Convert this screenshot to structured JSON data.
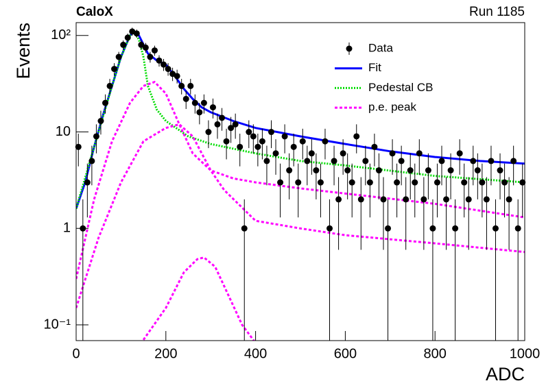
{
  "chart_data": {
    "type": "scatter",
    "title": "CaloX",
    "subtitle": "Run 1185",
    "x_label": "ADC",
    "y_label": "Events",
    "log_y": true,
    "xlim": [
      0,
      1000
    ],
    "ylim": [
      0.0687,
      136
    ],
    "xticks": [
      0,
      200,
      400,
      600,
      800,
      1000
    ],
    "yticks": [
      {
        "value": 0.1,
        "label": "10⁻¹"
      },
      1,
      10,
      {
        "value": 100,
        "label": "10²"
      }
    ],
    "legend": "top-right",
    "data_points": {
      "name": "Data",
      "color": "#000000",
      "x": [
        5,
        15,
        25,
        35,
        45,
        55,
        65,
        75,
        85,
        95,
        105,
        115,
        125,
        135,
        145,
        155,
        165,
        175,
        185,
        195,
        205,
        215,
        225,
        235,
        245,
        255,
        265,
        275,
        285,
        295,
        305,
        315,
        325,
        335,
        345,
        355,
        365,
        375,
        385,
        395,
        405,
        415,
        425,
        435,
        445,
        455,
        465,
        475,
        485,
        495,
        505,
        515,
        525,
        535,
        545,
        555,
        565,
        575,
        585,
        595,
        605,
        615,
        625,
        635,
        645,
        655,
        665,
        675,
        685,
        695,
        705,
        715,
        725,
        735,
        745,
        755,
        765,
        775,
        785,
        795,
        805,
        815,
        825,
        835,
        845,
        855,
        865,
        875,
        885,
        895,
        905,
        915,
        925,
        935,
        945,
        955,
        965,
        975,
        985,
        995
      ],
      "values": [
        7,
        1,
        3,
        5,
        9,
        13,
        20,
        30,
        45,
        60,
        80,
        95,
        110,
        105,
        80,
        75,
        60,
        70,
        55,
        50,
        45,
        40,
        38,
        30,
        22,
        30,
        20,
        16,
        20,
        10,
        18,
        12,
        14,
        8,
        11,
        12,
        7,
        1,
        10,
        9,
        7,
        8,
        5,
        10,
        6,
        3,
        9,
        4,
        7,
        3,
        8,
        5,
        6,
        4,
        3,
        8,
        1,
        5,
        2,
        6,
        4,
        3,
        9,
        2,
        5,
        3,
        7,
        4,
        2,
        1,
        6,
        3,
        5,
        2,
        4,
        3,
        6,
        2,
        4,
        1,
        3,
        5,
        2,
        4,
        1,
        6,
        3,
        2,
        5,
        4,
        3,
        2,
        5,
        1,
        4,
        3,
        2,
        5,
        1,
        3
      ],
      "errors": [
        2.6,
        1,
        1.7,
        2.2,
        3,
        3.6,
        4.5,
        5.5,
        6.7,
        7.7,
        8.9,
        9.7,
        10.5,
        10.2,
        8.9,
        8.7,
        7.7,
        8.4,
        7.4,
        7.1,
        6.7,
        6.3,
        6.2,
        5.5,
        4.7,
        5.5,
        4.5,
        4,
        4.5,
        3.2,
        4.2,
        3.5,
        3.7,
        2.8,
        3.3,
        3.5,
        2.6,
        1,
        3.2,
        3,
        2.6,
        2.8,
        2.2,
        3.2,
        2.4,
        1.7,
        3,
        2,
        2.6,
        1.7,
        2.8,
        2.2,
        2.4,
        2,
        1.7,
        2.8,
        1,
        2.2,
        1.4,
        2.4,
        2,
        1.7,
        3,
        1.4,
        2.2,
        1.7,
        2.6,
        2,
        1.4,
        1,
        2.4,
        1.7,
        2.2,
        1.4,
        2,
        1.7,
        2.4,
        1.4,
        2,
        1,
        1.7,
        2.2,
        1.4,
        2,
        1,
        2.4,
        1.7,
        1.4,
        2.2,
        2,
        1.7,
        1.4,
        2.2,
        1,
        2,
        1.7,
        1.4,
        2.2,
        1,
        1.7
      ]
    },
    "curves": [
      {
        "name": "Fit",
        "color": "#0000ff",
        "style": "solid",
        "x": [
          0,
          20,
          40,
          60,
          80,
          100,
          120,
          130,
          140,
          160,
          180,
          200,
          220,
          240,
          260,
          280,
          300,
          350,
          400,
          500,
          600,
          700,
          800,
          900,
          1000
        ],
        "values": [
          1.6,
          3,
          7,
          15,
          30,
          60,
          100,
          110,
          100,
          65,
          55,
          50,
          38,
          28,
          22,
          18,
          16,
          13,
          11,
          9,
          7.5,
          6.3,
          5.5,
          5,
          4.7
        ]
      },
      {
        "name": "Pedestal CB",
        "color": "#00dd00",
        "style": "dotted",
        "x": [
          0,
          40,
          80,
          100,
          120,
          130,
          140,
          150,
          160,
          180,
          200,
          250,
          300,
          400,
          500,
          600,
          800,
          1000
        ],
        "values": [
          1.6,
          7,
          30,
          60,
          100,
          110,
          90,
          60,
          30,
          17,
          13,
          9,
          7.5,
          6,
          5,
          4.5,
          3.5,
          3
        ]
      },
      {
        "name": "p.e. peak",
        "color": "#ff00ff",
        "style": "dashed",
        "x": [
          0,
          40,
          80,
          120,
          150,
          175,
          200,
          230,
          260,
          300,
          350,
          400,
          500,
          600,
          800,
          1000
        ],
        "values": [
          0.3,
          2,
          8,
          20,
          30,
          33,
          25,
          12,
          6,
          4,
          3.3,
          3,
          2.6,
          2.3,
          1.8,
          1.3
        ]
      },
      {
        "color": "#ff00ff",
        "style": "dashed",
        "x": [
          0,
          50,
          100,
          150,
          200,
          230,
          260,
          300,
          330,
          400,
          500,
          600,
          800,
          1000
        ],
        "values": [
          0.15,
          0.8,
          3,
          8,
          11,
          12,
          9,
          4,
          2.5,
          1.2,
          1,
          0.85,
          0.7,
          0.57
        ]
      },
      {
        "color": "#ff00ff",
        "style": "dashed",
        "x": [
          150,
          200,
          240,
          270,
          285,
          310,
          340,
          370,
          400
        ],
        "values": [
          0.07,
          0.15,
          0.35,
          0.48,
          0.5,
          0.4,
          0.2,
          0.1,
          0.065
        ]
      }
    ]
  }
}
